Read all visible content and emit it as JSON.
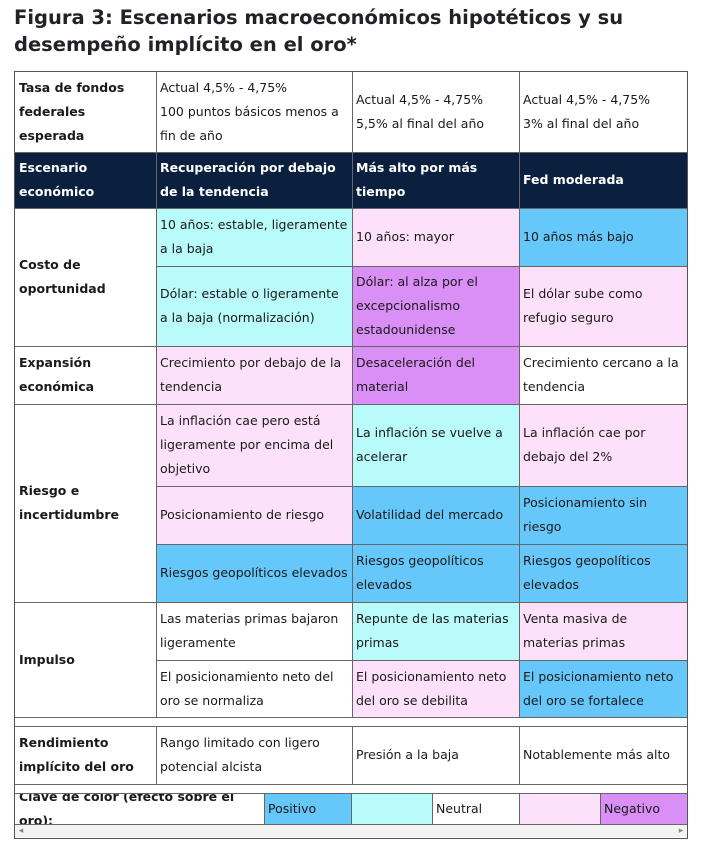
{
  "title": "Figura 3: Escenarios macroeconómicos hipotéticos y su desempeño implícito en el oro*",
  "colors": {
    "positive": "#66c7fa",
    "neutral_positive": "#b8fbfa",
    "neutral": "#ffffff",
    "neutral_negative": "#fde1fb",
    "negative": "#d98ff5",
    "header": "#0b1f3f"
  },
  "rate_row": {
    "label": "Tasa de fondos federales esperada",
    "c1": [
      "Actual 4,5% - 4,75%",
      "100 puntos básicos menos a fin de año"
    ],
    "c2": [
      "Actual 4,5% - 4,75%",
      "5,5% al final del año"
    ],
    "c3": [
      "Actual 4,5% - 4,75%",
      "3% al final del año"
    ]
  },
  "header": {
    "label": "Escenario económico",
    "c1": "Recuperación por debajo de la tendencia",
    "c2": "Más alto por más tiempo",
    "c3": "Fed moderada"
  },
  "opportunity": {
    "label": "Costo de oportunidad",
    "r1": [
      "10 años: estable, ligeramente a la baja",
      "10 años: mayor",
      "10 años más bajo"
    ],
    "r2": [
      "Dólar: estable o ligeramente a la baja (normalización)",
      "Dólar: al alza por el excepcionalismo estadounidense",
      "El dólar sube como refugio seguro"
    ]
  },
  "expansion": {
    "label": "Expansión económica",
    "r1": [
      "Crecimiento por debajo de la tendencia",
      "Desaceleración del material",
      "Crecimiento cercano a la tendencia"
    ]
  },
  "risk": {
    "label": "Riesgo e incertidumbre",
    "r1": [
      "La inflación cae pero está ligeramente por encima del objetivo",
      "La inflación se vuelve a acelerar",
      "La inflación cae por debajo del 2%"
    ],
    "r2": [
      "Posicionamiento de riesgo",
      "Volatilidad del mercado",
      "Posicionamiento sin riesgo"
    ],
    "r3": [
      "Riesgos geopolíticos elevados",
      "Riesgos geopolíticos elevados",
      "Riesgos geopolíticos elevados"
    ]
  },
  "momentum": {
    "label": "Impulso",
    "r1": [
      "Las materias primas bajaron ligeramente",
      "Repunte de las materias primas",
      "Venta masiva de materias primas"
    ],
    "r2": [
      "El posicionamiento neto del oro se normaliza",
      "El posicionamiento neto del oro se debilita",
      "El posicionamiento neto del oro se fortalece"
    ]
  },
  "implied": {
    "label": "Rendimiento implícito del oro",
    "r1": [
      "Rango limitado con ligero potencial alcista",
      "Presión a la baja",
      "Notablemente más alto"
    ]
  },
  "legend": {
    "label": "Clave de color (efecto sobre el oro):",
    "positive": "Positivo",
    "neutral": "Neutral",
    "negative": "Negativo"
  }
}
